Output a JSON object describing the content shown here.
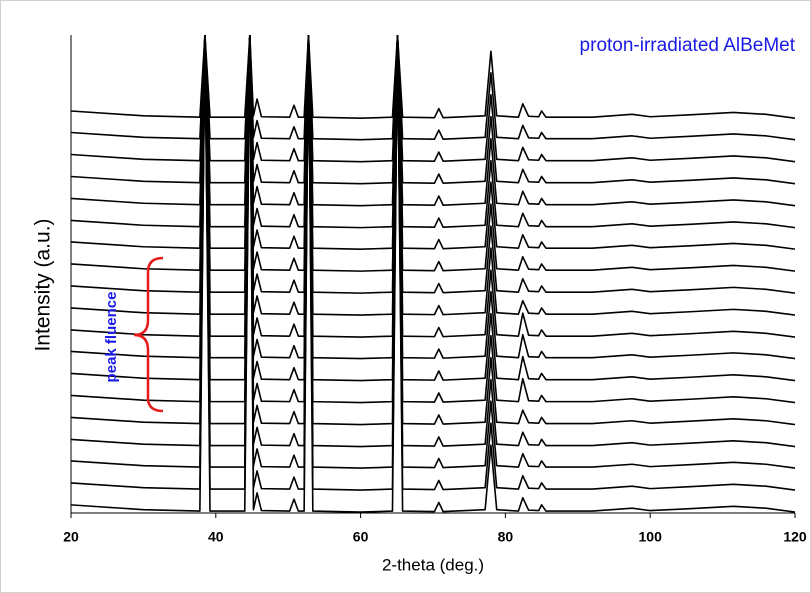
{
  "chart_data": {
    "type": "line",
    "title": "proton-irradiated AlBeMet",
    "annotation": "peak fluence",
    "x_label": "2-theta (deg.)",
    "y_label": "Intensity (a.u.)",
    "xlim": [
      20,
      120
    ],
    "xticks": [
      20,
      40,
      60,
      80,
      100,
      120
    ],
    "ylim": [
      0,
      100
    ],
    "x": [
      20,
      30,
      37.8,
      38.5,
      39.2,
      44.0,
      44.7,
      45.2,
      45.7,
      46.3,
      50.2,
      50.8,
      51.4,
      52.2,
      52.8,
      53.4,
      60,
      64.4,
      65.1,
      65.8,
      70.2,
      70.8,
      71.4,
      77.2,
      78.0,
      78.8,
      81.8,
      82.4,
      83.2,
      84.6,
      85.0,
      85.6,
      92,
      97.5,
      100,
      105.5,
      111.5,
      116,
      120
    ],
    "series": [
      {
        "color": "#000000",
        "values": [
          1.7,
          0.7,
          0.4,
          100,
          0.4,
          0.4,
          100,
          0.7,
          4.2,
          0.5,
          0.4,
          2.9,
          0.4,
          0.4,
          100,
          0.4,
          0.2,
          0.4,
          100,
          0.4,
          0.3,
          2.2,
          0.3,
          0.7,
          14.2,
          0.7,
          0.4,
          3.2,
          0.6,
          0.5,
          1.7,
          0.4,
          0.4,
          1.0,
          0.5,
          0.9,
          1.4,
          1.0,
          0.2
        ]
      },
      {
        "color": "#000000",
        "values": [
          6.3,
          5.3,
          5.0,
          100,
          5.0,
          5.0,
          100,
          5.3,
          8.8,
          5.1,
          5.0,
          7.5,
          5.0,
          5.0,
          100,
          5.0,
          4.8,
          5.0,
          100,
          5.0,
          4.9,
          6.8,
          4.9,
          5.3,
          18.8,
          5.3,
          5.0,
          7.8,
          5.2,
          5.1,
          6.3,
          5.0,
          5.0,
          5.6,
          5.1,
          5.5,
          6.0,
          5.6,
          4.8
        ]
      },
      {
        "color": "#000000",
        "values": [
          10.9,
          9.9,
          9.6,
          100,
          9.6,
          9.6,
          100,
          9.9,
          13.4,
          9.7,
          9.6,
          12.1,
          9.6,
          9.6,
          100,
          9.6,
          9.4,
          9.6,
          100,
          9.6,
          9.5,
          11.4,
          9.5,
          9.9,
          23.4,
          9.9,
          9.6,
          12.4,
          9.8,
          9.7,
          10.9,
          9.6,
          9.6,
          10.2,
          9.7,
          10.1,
          10.6,
          10.2,
          9.4
        ]
      },
      {
        "color": "#000000",
        "values": [
          15.4,
          14.4,
          14.1,
          100,
          14.1,
          14.1,
          100,
          14.4,
          17.9,
          14.2,
          14.1,
          16.6,
          14.1,
          14.1,
          100,
          14.1,
          13.9,
          14.1,
          100,
          14.1,
          14.0,
          15.9,
          14.0,
          14.4,
          27.9,
          14.4,
          14.1,
          16.9,
          14.3,
          14.2,
          15.4,
          14.1,
          14.1,
          14.7,
          14.2,
          14.6,
          15.1,
          14.7,
          13.9
        ]
      },
      {
        "color": "#000000",
        "values": [
          20.0,
          19.0,
          18.7,
          100,
          18.7,
          18.7,
          100,
          19.0,
          22.5,
          18.8,
          18.7,
          21.2,
          18.7,
          18.7,
          100,
          18.7,
          18.5,
          18.7,
          100,
          18.7,
          18.6,
          20.5,
          18.6,
          19.0,
          32.5,
          19.0,
          18.7,
          21.5,
          18.9,
          18.8,
          20.0,
          18.7,
          18.7,
          19.3,
          18.8,
          19.2,
          19.7,
          19.3,
          18.5
        ]
      },
      {
        "color": "#000000",
        "values": [
          24.6,
          23.6,
          23.3,
          100,
          23.3,
          23.3,
          100,
          23.6,
          27.1,
          23.4,
          23.3,
          25.8,
          23.3,
          23.3,
          100,
          23.3,
          23.1,
          23.3,
          100,
          23.3,
          23.2,
          25.1,
          23.2,
          23.6,
          37.1,
          23.6,
          23.3,
          28.1,
          23.5,
          23.4,
          24.6,
          23.3,
          23.3,
          23.9,
          23.4,
          23.8,
          24.3,
          23.9,
          23.1
        ]
      },
      {
        "color": "#000000",
        "values": [
          29.2,
          28.2,
          27.9,
          100,
          27.9,
          27.9,
          100,
          28.2,
          31.7,
          28.0,
          27.9,
          30.4,
          27.9,
          27.9,
          100,
          27.9,
          27.7,
          27.9,
          100,
          27.9,
          27.8,
          29.7,
          27.8,
          28.2,
          41.7,
          28.2,
          27.9,
          32.7,
          28.1,
          28.0,
          29.2,
          27.9,
          27.9,
          28.5,
          28.0,
          28.4,
          28.9,
          28.5,
          27.7
        ]
      },
      {
        "color": "#000000",
        "values": [
          33.8,
          32.8,
          32.5,
          100,
          32.5,
          32.5,
          100,
          32.8,
          36.3,
          32.6,
          32.5,
          35.0,
          32.5,
          32.5,
          100,
          32.5,
          32.3,
          32.5,
          100,
          32.5,
          32.4,
          34.3,
          32.4,
          32.8,
          46.3,
          32.8,
          32.5,
          37.3,
          32.7,
          32.6,
          33.8,
          32.5,
          32.5,
          33.1,
          32.6,
          33.0,
          33.5,
          33.1,
          32.3
        ]
      },
      {
        "color": "#000000",
        "values": [
          38.3,
          37.3,
          37.0,
          100,
          37.0,
          37.0,
          100,
          37.3,
          40.8,
          37.1,
          37.0,
          39.5,
          37.0,
          37.0,
          100,
          37.0,
          36.8,
          37.0,
          100,
          37.0,
          36.9,
          38.8,
          36.9,
          37.3,
          50.8,
          37.3,
          37.0,
          41.8,
          37.2,
          37.1,
          38.3,
          37.0,
          37.0,
          37.6,
          37.1,
          37.5,
          38.0,
          37.6,
          36.8
        ]
      },
      {
        "color": "#000000",
        "values": [
          42.9,
          41.9,
          41.6,
          100,
          41.6,
          41.6,
          100,
          41.9,
          45.4,
          41.7,
          41.6,
          44.1,
          41.6,
          41.6,
          100,
          41.6,
          41.4,
          41.6,
          100,
          41.6,
          41.5,
          43.4,
          41.5,
          41.9,
          55.4,
          41.9,
          41.6,
          44.4,
          41.8,
          41.7,
          42.9,
          41.6,
          41.6,
          42.2,
          41.7,
          42.1,
          42.6,
          42.2,
          41.4
        ]
      },
      {
        "color": "#000000",
        "values": [
          47.5,
          46.5,
          46.2,
          100,
          46.2,
          46.2,
          100,
          46.5,
          50.0,
          46.3,
          46.2,
          48.7,
          46.2,
          46.2,
          100,
          46.2,
          46.0,
          46.2,
          100,
          46.2,
          46.1,
          48.0,
          46.1,
          46.5,
          60.0,
          46.5,
          46.2,
          49.0,
          46.4,
          46.3,
          47.5,
          46.2,
          46.2,
          46.8,
          46.3,
          46.7,
          47.2,
          46.8,
          46.0
        ]
      },
      {
        "color": "#000000",
        "values": [
          52.1,
          51.1,
          50.8,
          100,
          50.8,
          50.8,
          100,
          51.1,
          54.6,
          50.9,
          50.8,
          53.3,
          50.8,
          50.8,
          100,
          50.8,
          50.6,
          50.8,
          100,
          50.8,
          50.7,
          52.6,
          50.7,
          51.1,
          64.6,
          51.1,
          50.8,
          53.6,
          51.0,
          50.9,
          52.1,
          50.8,
          50.8,
          51.4,
          50.9,
          51.3,
          51.8,
          51.4,
          50.6
        ]
      },
      {
        "color": "#000000",
        "values": [
          56.7,
          55.7,
          55.4,
          100,
          55.4,
          55.4,
          100,
          55.7,
          59.2,
          55.5,
          55.4,
          57.9,
          55.4,
          55.4,
          100,
          55.4,
          55.2,
          55.4,
          100,
          55.4,
          55.3,
          57.2,
          55.3,
          55.7,
          69.2,
          55.7,
          55.4,
          58.2,
          55.6,
          55.5,
          56.7,
          55.4,
          55.4,
          56.0,
          55.5,
          55.9,
          56.4,
          56.0,
          55.2
        ]
      },
      {
        "color": "#000000",
        "values": [
          61.2,
          60.2,
          59.9,
          100,
          59.9,
          59.9,
          100,
          60.2,
          63.7,
          60.0,
          59.9,
          62.4,
          59.9,
          59.9,
          100,
          59.9,
          59.7,
          59.9,
          100,
          59.9,
          59.8,
          61.7,
          59.8,
          60.2,
          73.7,
          60.2,
          59.9,
          62.7,
          60.1,
          60.0,
          61.2,
          59.9,
          59.9,
          60.5,
          60.0,
          60.4,
          60.9,
          60.5,
          59.7
        ]
      },
      {
        "color": "#000000",
        "values": [
          65.8,
          64.8,
          64.5,
          100,
          64.5,
          64.5,
          100,
          64.8,
          68.3,
          64.6,
          64.5,
          67.0,
          64.5,
          64.5,
          100,
          64.5,
          64.3,
          64.5,
          100,
          64.5,
          64.4,
          66.3,
          64.4,
          64.8,
          78.3,
          64.8,
          64.5,
          67.3,
          64.7,
          64.6,
          65.8,
          64.5,
          64.5,
          65.1,
          64.6,
          65.0,
          65.5,
          65.1,
          64.3
        ]
      },
      {
        "color": "#000000",
        "values": [
          70.4,
          69.4,
          69.1,
          100,
          69.1,
          69.1,
          100,
          69.4,
          72.9,
          69.2,
          69.1,
          71.6,
          69.1,
          69.1,
          100,
          69.1,
          68.9,
          69.1,
          100,
          69.1,
          69.0,
          70.9,
          69.0,
          69.4,
          82.9,
          69.4,
          69.1,
          71.9,
          69.3,
          69.2,
          70.4,
          69.1,
          69.1,
          69.7,
          69.2,
          69.6,
          70.1,
          69.7,
          68.9
        ]
      },
      {
        "color": "#000000",
        "values": [
          75.0,
          74.0,
          73.7,
          100,
          73.7,
          73.7,
          100,
          74.0,
          77.5,
          73.8,
          73.7,
          76.2,
          73.7,
          73.7,
          100,
          73.7,
          73.5,
          73.7,
          100,
          73.7,
          73.6,
          75.5,
          73.6,
          74.0,
          87.5,
          74.0,
          73.7,
          76.5,
          73.9,
          73.8,
          75.0,
          73.7,
          73.7,
          74.3,
          73.8,
          74.2,
          74.7,
          74.3,
          73.5
        ]
      },
      {
        "color": "#000000",
        "values": [
          79.6,
          78.6,
          78.3,
          100,
          78.3,
          78.3,
          100,
          78.6,
          82.1,
          78.4,
          78.3,
          80.8,
          78.3,
          78.3,
          100,
          78.3,
          78.1,
          78.3,
          100,
          78.3,
          78.2,
          80.1,
          78.2,
          78.6,
          92.1,
          78.6,
          78.3,
          81.1,
          78.5,
          78.4,
          79.6,
          78.3,
          78.3,
          78.9,
          78.4,
          78.8,
          79.3,
          78.9,
          78.1
        ]
      },
      {
        "color": "#000000",
        "values": [
          84.1,
          83.1,
          82.8,
          100,
          82.8,
          82.8,
          100,
          83.1,
          86.6,
          82.9,
          82.8,
          85.3,
          82.8,
          82.8,
          100,
          82.8,
          82.6,
          82.8,
          100,
          82.8,
          82.7,
          84.6,
          82.7,
          83.1,
          96.6,
          83.1,
          82.8,
          85.6,
          83.0,
          82.9,
          84.1,
          82.8,
          82.8,
          83.4,
          82.9,
          83.3,
          83.8,
          83.4,
          82.6
        ]
      }
    ]
  }
}
